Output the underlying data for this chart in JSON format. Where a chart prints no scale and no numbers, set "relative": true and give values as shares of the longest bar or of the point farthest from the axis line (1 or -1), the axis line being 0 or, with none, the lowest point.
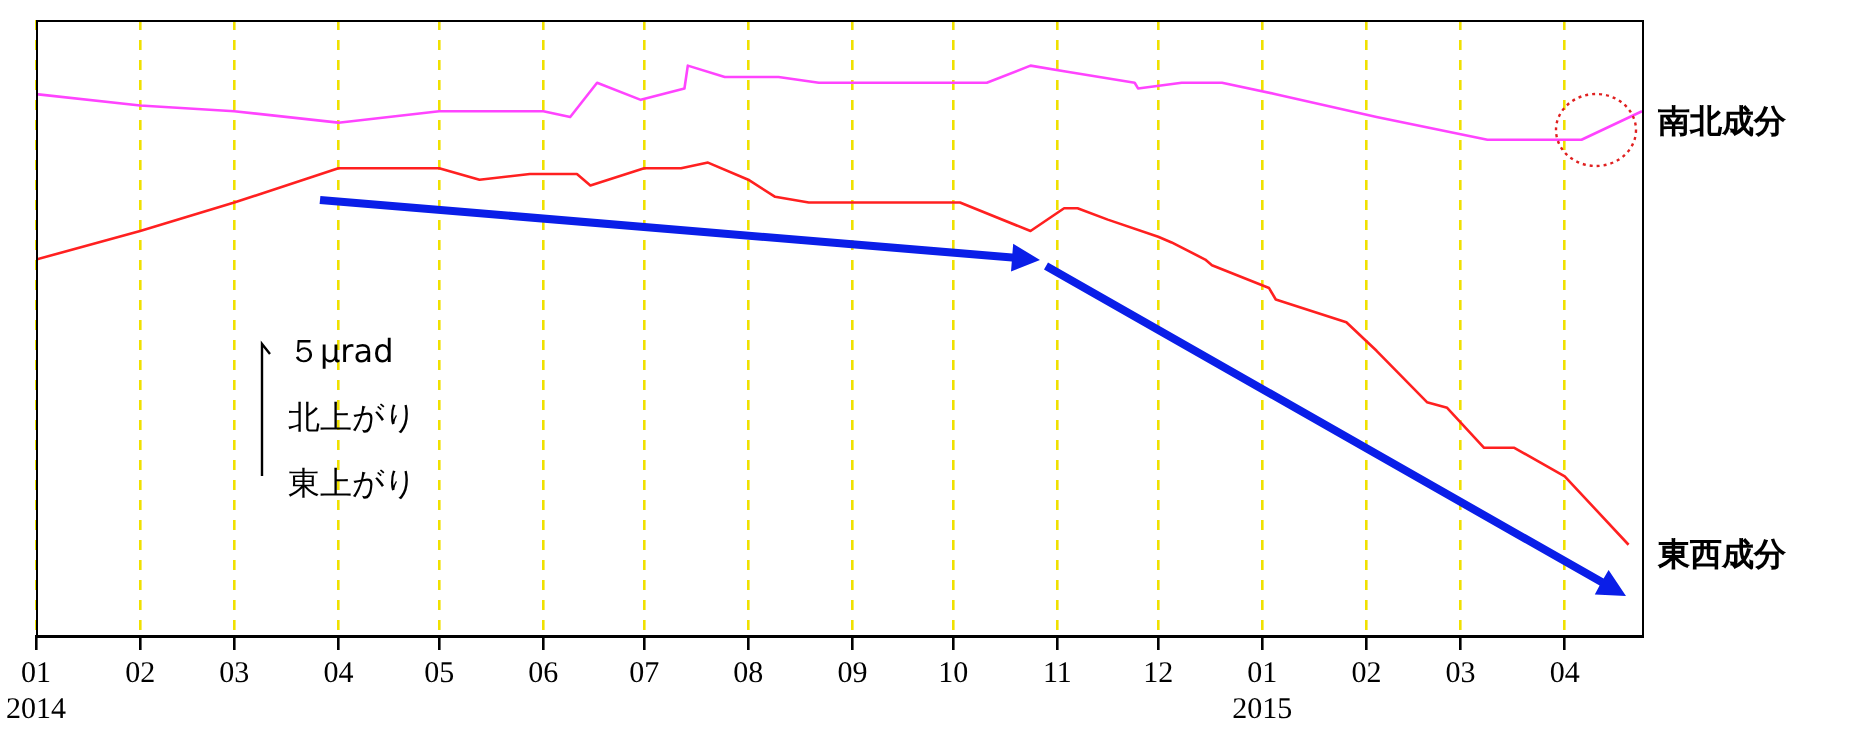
{
  "chart_data": {
    "type": "line",
    "relative": true,
    "grid": "x",
    "xlim": [
      "2014-01-01",
      "2015-04-24"
    ],
    "xticks": [
      {
        "value": "2014-01-01",
        "label": "01\n2014"
      },
      {
        "value": "2014-02-01",
        "label": "02"
      },
      {
        "value": "2014-03-01",
        "label": "03"
      },
      {
        "value": "2014-04-01",
        "label": "04"
      },
      {
        "value": "2014-05-01",
        "label": "05"
      },
      {
        "value": "2014-06-01",
        "label": "06"
      },
      {
        "value": "2014-07-01",
        "label": "07"
      },
      {
        "value": "2014-08-01",
        "label": "08"
      },
      {
        "value": "2014-09-01",
        "label": "09"
      },
      {
        "value": "2014-10-01",
        "label": "10"
      },
      {
        "value": "2014-11-01",
        "label": "11"
      },
      {
        "value": "2014-12-01",
        "label": "12"
      },
      {
        "value": "2015-01-01",
        "label": "01\n2015"
      },
      {
        "value": "2015-02-01",
        "label": "02"
      },
      {
        "value": "2015-03-01",
        "label": "03"
      },
      {
        "value": "2015-04-01",
        "label": "04"
      }
    ],
    "annotations": [
      "５μrad",
      "北上がり",
      "東上がり"
    ],
    "series": [
      {
        "name": "南北成分",
        "color": "#ff44ff",
        "x": [
          "2014-01-01",
          "2014-02-01",
          "2014-03-01",
          "2014-04-01",
          "2014-05-01",
          "2014-05-14",
          "2014-06-01",
          "2014-06-09",
          "2014-06-17",
          "2014-06-30",
          "2014-07-13",
          "2014-07-14",
          "2014-07-25",
          "2014-08-10",
          "2014-08-22",
          "2014-09-27",
          "2014-10-11",
          "2014-10-24",
          "2014-11-03",
          "2014-11-24",
          "2014-11-25",
          "2014-12-08",
          "2014-12-20",
          "2015-01-05",
          "2015-02-04",
          "2015-03-09",
          "2015-03-31",
          "2015-04-06",
          "2015-04-24"
        ],
        "values": [
          0.95,
          0.93,
          0.92,
          0.9,
          0.92,
          0.92,
          0.92,
          0.91,
          0.97,
          0.94,
          0.96,
          1.0,
          0.98,
          0.98,
          0.97,
          0.97,
          0.97,
          1.0,
          0.99,
          0.97,
          0.96,
          0.97,
          0.97,
          0.95,
          0.91,
          0.87,
          0.87,
          0.87,
          0.92
        ]
      },
      {
        "name": "東西成分",
        "color": "#ff2020",
        "x": [
          "2014-01-01",
          "2014-02-01",
          "2014-03-01",
          "2014-04-01",
          "2014-04-18",
          "2014-05-01",
          "2014-05-13",
          "2014-05-28",
          "2014-06-11",
          "2014-06-15",
          "2014-07-01",
          "2014-07-12",
          "2014-07-20",
          "2014-08-01",
          "2014-08-09",
          "2014-08-19",
          "2014-08-23",
          "2014-10-03",
          "2014-10-24",
          "2014-11-03",
          "2014-11-07",
          "2014-11-16",
          "2014-12-01",
          "2014-12-05",
          "2014-12-15",
          "2014-12-17",
          "2015-01-03",
          "2015-01-05",
          "2015-01-26",
          "2015-02-04",
          "2015-02-19",
          "2015-02-25",
          "2015-03-08",
          "2015-03-17",
          "2015-04-01",
          "2015-04-20"
        ],
        "values": [
          0.66,
          0.71,
          0.76,
          0.82,
          0.82,
          0.82,
          0.8,
          0.81,
          0.81,
          0.79,
          0.82,
          0.82,
          0.83,
          0.8,
          0.77,
          0.76,
          0.76,
          0.76,
          0.71,
          0.75,
          0.75,
          0.73,
          0.7,
          0.69,
          0.66,
          0.65,
          0.61,
          0.59,
          0.55,
          0.5,
          0.41,
          0.4,
          0.33,
          0.33,
          0.28,
          0.16
        ]
      }
    ]
  }
}
